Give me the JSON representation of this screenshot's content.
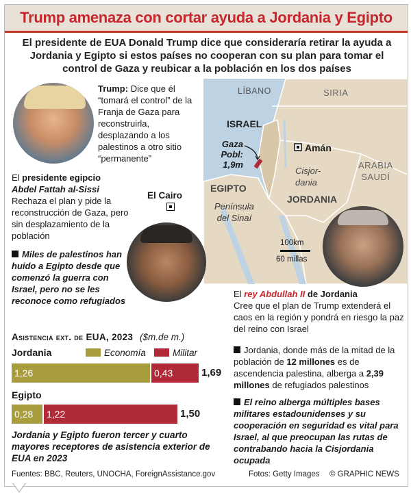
{
  "title": "Trump amenaza con cortar ayuda a Jordania y Egipto",
  "intro": "El presidente de EUA Donald Trump dice que consideraría retirar la ayuda a Jordania y Egipto si estos países no cooperan con su plan para tomar el control de Gaza y reubicar a la población en los dos países",
  "trump": {
    "name": "Trump:",
    "text": "Dice que él “tomará el control” de la Franja de Gaza para reconstruirla, desplazando a los palestinos a otro sitio “permanente”"
  },
  "sisi": {
    "lead": "El ",
    "role": "presidente egipcio",
    "name": "Abdel Fattah al-Sissi",
    "text": "Rechaza el plan y pide la reconstrucción de Gaza, pero sin desplazamiento de la población",
    "note": "Miles de palestinos han huido a Egipto desde que comenzó la guerra con Israel, pero no se les reconoce como refugiados"
  },
  "map": {
    "labels": {
      "libano": "LÍBANO",
      "siria": "SIRIA",
      "israel": "ISRAEL",
      "gaza": "Gaza",
      "gaza_pop": "Pobl:",
      "gaza_value": "1,9m",
      "aman": "Amán",
      "cisjordania_1": "Cisjor-",
      "cisjordania_2": "dania",
      "arabia_1": "ARABIA",
      "arabia_2": "SAUDÍ",
      "egipto": "EGIPTO",
      "cairo": "El Cairo",
      "sinai_1": "Península",
      "sinai_2": "del Sinaí",
      "jordania": "JORDANIA"
    },
    "scale_km": "100km",
    "scale_mi": "60 millas"
  },
  "abdullah": {
    "lead": "El ",
    "name": "rey Abdullah II",
    "rest": " de Jordania",
    "text": "Cree que el plan de Trump extenderá el caos en la región y pondrá en riesgo la paz del reino con Israel",
    "note1_a": "Jordania, donde más de la mitad de la población de ",
    "note1_b": "12 millones",
    "note1_c": " es de ascendencia palestina, alberga a ",
    "note1_d": "2,39 millones",
    "note1_e": " de refugiados palestinos",
    "note2": "El reino alberga múltiples bases militares estadounidenses y su cooperación en seguridad es vital para Israel, al que preocupan las rutas de contrabando hacia la Cisjordania ocupada"
  },
  "chart_heading": "Asistencia ext. de EUA, 2023",
  "chart_unit": "($m.de m.)",
  "chart_data": {
    "type": "bar",
    "title": "Asistencia ext. de EUA, 2023",
    "unit": "($m.de m.)",
    "categories": [
      "Jordania",
      "Egipto"
    ],
    "series": [
      {
        "name": "Economía",
        "values": [
          1.26,
          0.28
        ],
        "labels": [
          "1,26",
          "0,28"
        ],
        "color": "#a89c3c"
      },
      {
        "name": "Militar",
        "values": [
          0.43,
          1.22
        ],
        "labels": [
          "0,43",
          "1,22"
        ],
        "color": "#b02a37"
      }
    ],
    "totals": [
      "1,69",
      "1,50"
    ],
    "total_values": [
      1.69,
      1.5
    ]
  },
  "chart_note": "Jordania y Egipto fueron tercer y cuarto mayores receptores de asistencia exterior de EUA en 2023",
  "footer": {
    "sources": "Fuentes: BBC, Reuters, UNOCHA, ForeignAssistance.gov",
    "photos": "Fotos: Getty Images",
    "credit": "© GRAPHIC NEWS"
  },
  "colors": {
    "accent_red": "#c8252c",
    "olive": "#a89c3c",
    "military_red": "#b02a37",
    "sea": "#bdd3e4",
    "land": "#e6d9c4"
  }
}
